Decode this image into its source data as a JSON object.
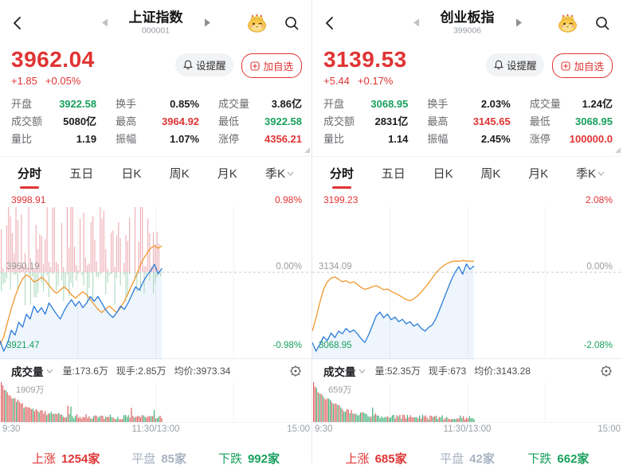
{
  "theme": {
    "red": "#e03434",
    "green": "#18a05d",
    "blue": "#2b7cd9",
    "orange": "#f0982f",
    "bar_red_soft": "#eeb0b8",
    "bar_green_soft": "#b4dcc4",
    "vol_red": "#dd5f5f",
    "vol_green": "#3fae76",
    "grid": "#f1f1f1",
    "zero_line": "#c9c9c9"
  },
  "panels": [
    {
      "header": {
        "title": "上证指数",
        "code": "000001"
      },
      "price": {
        "last": "3962.04",
        "change": "+1.85",
        "change_pct": "+0.05%"
      },
      "actions": {
        "alert": "设提醒",
        "add": "加自选"
      },
      "stats": [
        {
          "label": "开盘",
          "value": "3922.58",
          "color": "green"
        },
        {
          "label": "换手",
          "value": "0.85%",
          "color": "dark"
        },
        {
          "label": "成交量",
          "value": "3.86亿",
          "color": "dark"
        },
        {
          "label": "成交额",
          "value": "5080亿",
          "color": "dark"
        },
        {
          "label": "最高",
          "value": "3964.92",
          "color": "red"
        },
        {
          "label": "最低",
          "value": "3922.58",
          "color": "green"
        },
        {
          "label": "量比",
          "value": "1.19",
          "color": "dark"
        },
        {
          "label": "振幅",
          "value": "1.07%",
          "color": "dark"
        },
        {
          "label": "涨停",
          "value": "4356.21",
          "color": "red"
        }
      ],
      "tabs": [
        "分时",
        "五日",
        "日K",
        "周K",
        "月K",
        "季K"
      ],
      "volume": {
        "title": "成交量",
        "vol": "量:173.6万",
        "cur": "现手:2.85万",
        "avg": "均价:3973.34",
        "scale_label": "1909万"
      },
      "time_axis": {
        "left": "9:30",
        "center": "11:30/13:00",
        "right": "15:00"
      },
      "breadth": {
        "up_label": "上涨",
        "up_value": "1254家",
        "flat_label": "平盘",
        "flat_value": "85家",
        "down_label": "下跌",
        "down_value": "992家"
      }
    },
    {
      "header": {
        "title": "创业板指",
        "code": "399006"
      },
      "price": {
        "last": "3139.53",
        "change": "+5.44",
        "change_pct": "+0.17%"
      },
      "actions": {
        "alert": "设提醒",
        "add": "加自选"
      },
      "stats": [
        {
          "label": "开盘",
          "value": "3068.95",
          "color": "green"
        },
        {
          "label": "换手",
          "value": "2.03%",
          "color": "dark"
        },
        {
          "label": "成交量",
          "value": "1.24亿",
          "color": "dark"
        },
        {
          "label": "成交额",
          "value": "2831亿",
          "color": "dark"
        },
        {
          "label": "最高",
          "value": "3145.65",
          "color": "red"
        },
        {
          "label": "最低",
          "value": "3068.95",
          "color": "green"
        },
        {
          "label": "量比",
          "value": "1.14",
          "color": "dark"
        },
        {
          "label": "振幅",
          "value": "2.45%",
          "color": "dark"
        },
        {
          "label": "涨停",
          "value": "100000.0",
          "color": "red"
        }
      ],
      "tabs": [
        "分时",
        "五日",
        "日K",
        "周K",
        "月K",
        "季K"
      ],
      "volume": {
        "title": "成交量",
        "vol": "量:52.35万",
        "cur": "现手:673",
        "avg": "均价:3143.28",
        "scale_label": "659万"
      },
      "time_axis": {
        "left": "9:30",
        "center": "11:30/13:00",
        "right": "15:00"
      },
      "breadth": {
        "up_label": "上涨",
        "up_value": "685家",
        "flat_label": "平盘",
        "flat_value": "42家",
        "down_label": "下跌",
        "down_value": "662家"
      }
    }
  ],
  "chart_data": [
    {
      "type": "line",
      "title": "上证指数 分时",
      "y_top_label": "3998.91",
      "y_top_pct": "0.98%",
      "y_mid_label": "3960.19",
      "y_mid_pct": "0.00%",
      "y_bottom_label": "3921.47",
      "y_bottom_pct": "-0.98%",
      "pct_max": 0.98,
      "x_labels": [
        "9:30",
        "11:30/13:00",
        "15:00"
      ],
      "session_fraction": 0.52,
      "zero_bars": true,
      "bar_seed": 5,
      "vol_seed": 11,
      "series": [
        {
          "name": "price_pct",
          "values": [
            -0.85,
            -0.98,
            -0.88,
            -0.72,
            -0.78,
            -0.62,
            -0.68,
            -0.52,
            -0.58,
            -0.42,
            -0.5,
            -0.44,
            -0.52,
            -0.38,
            -0.45,
            -0.52,
            -0.58,
            -0.48,
            -0.4,
            -0.34,
            -0.42,
            -0.36,
            -0.44,
            -0.38,
            -0.3,
            -0.36,
            -0.3,
            -0.38,
            -0.46,
            -0.52,
            -0.56,
            -0.5,
            -0.42,
            -0.46,
            -0.38,
            -0.28,
            -0.18,
            -0.22,
            -0.12,
            -0.04,
            0.02,
            0.1,
            -0.02,
            0.05
          ]
        },
        {
          "name": "avg_pct",
          "values": [
            -0.9,
            -0.8,
            -0.62,
            -0.45,
            -0.3,
            -0.18,
            -0.08,
            -0.03,
            -0.06,
            -0.12,
            -0.1,
            -0.06,
            -0.1,
            -0.16,
            -0.22,
            -0.26,
            -0.22,
            -0.18,
            -0.22,
            -0.28,
            -0.32,
            -0.28,
            -0.24,
            -0.28,
            -0.34,
            -0.4,
            -0.46,
            -0.5,
            -0.46,
            -0.42,
            -0.46,
            -0.5,
            -0.44,
            -0.36,
            -0.26,
            -0.16,
            -0.06,
            0.06,
            0.16,
            0.24,
            0.3,
            0.33,
            0.3,
            0.33
          ]
        }
      ],
      "volume_scale": "1909万"
    },
    {
      "type": "line",
      "title": "创业板指 分时",
      "y_top_label": "3199.23",
      "y_top_pct": "2.08%",
      "y_mid_label": "3134.09",
      "y_mid_pct": "0.00%",
      "y_bottom_label": "3068.95",
      "y_bottom_pct": "-2.08%",
      "pct_max": 2.08,
      "x_labels": [
        "9:30",
        "11:30/13:00",
        "15:00"
      ],
      "session_fraction": 0.52,
      "zero_bars": false,
      "bar_seed": 9,
      "vol_seed": 23,
      "series": [
        {
          "name": "price_pct",
          "values": [
            -1.85,
            -2.08,
            -1.9,
            -1.7,
            -1.8,
            -1.6,
            -1.72,
            -1.55,
            -1.62,
            -1.48,
            -1.58,
            -1.52,
            -1.62,
            -1.75,
            -1.85,
            -1.65,
            -1.4,
            -1.15,
            -1.05,
            -1.2,
            -1.1,
            -1.25,
            -1.18,
            -1.3,
            -1.24,
            -1.36,
            -1.3,
            -1.42,
            -1.36,
            -1.48,
            -1.55,
            -1.45,
            -1.38,
            -1.2,
            -0.95,
            -0.7,
            -0.45,
            -0.2,
            0.0,
            0.15,
            -0.05,
            0.22,
            0.08,
            0.17
          ]
        },
        {
          "name": "avg_pct",
          "values": [
            -1.55,
            -1.2,
            -0.8,
            -0.45,
            -0.25,
            -0.15,
            -0.12,
            -0.18,
            -0.25,
            -0.22,
            -0.28,
            -0.25,
            -0.32,
            -0.4,
            -0.45,
            -0.42,
            -0.38,
            -0.35,
            -0.4,
            -0.46,
            -0.44,
            -0.5,
            -0.55,
            -0.6,
            -0.66,
            -0.72,
            -0.75,
            -0.7,
            -0.62,
            -0.52,
            -0.4,
            -0.28,
            -0.14,
            0.0,
            0.1,
            0.18,
            0.24,
            0.28,
            0.3,
            0.29,
            0.31,
            0.3,
            0.29,
            0.29
          ]
        }
      ],
      "volume_scale": "659万"
    }
  ]
}
